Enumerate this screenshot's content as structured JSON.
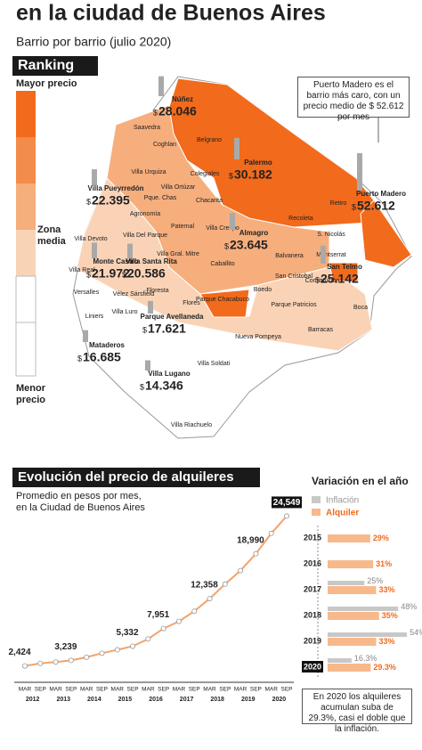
{
  "header": {
    "title": "en la ciudad de Buenos Aires",
    "subtitle": "Barrio por barrio (julio 2020)"
  },
  "ranking": {
    "title": "Ranking",
    "high": "Mayor precio",
    "mid": [
      "Zona",
      "media"
    ],
    "low": [
      "Menor",
      "precio"
    ]
  },
  "callout": "Puerto Madero es el barrio más caro, con un precio medio de $ 52.612 por mes",
  "currency": "$",
  "barrios": [
    {
      "name": "Núñez",
      "price": 28046,
      "price_label": "28.046"
    },
    {
      "name": "Saavedra"
    },
    {
      "name": "Coghlan"
    },
    {
      "name": "Belgrano"
    },
    {
      "name": "Villa Urquiza"
    },
    {
      "name": "Colegiales"
    },
    {
      "name": "Villa Ortúzar"
    },
    {
      "name": "Pque. Chas"
    },
    {
      "name": "Chacarita"
    },
    {
      "name": "Palermo",
      "price": 30182,
      "price_label": "30.182"
    },
    {
      "name": "Villa Pueyrredón",
      "price": 22395,
      "price_label": "22.395"
    },
    {
      "name": "Agronomía"
    },
    {
      "name": "Paternal"
    },
    {
      "name": "Villa Crespo"
    },
    {
      "name": "Recoleta"
    },
    {
      "name": "Retiro"
    },
    {
      "name": "Puerto Madero",
      "price": 52612,
      "price_label": "52.612"
    },
    {
      "name": "Villa Devoto"
    },
    {
      "name": "Villa Del Parque"
    },
    {
      "name": "Almagro",
      "price": 23645,
      "price_label": "23.645"
    },
    {
      "name": "S. Nicolás"
    },
    {
      "name": "Villa Gral. Mitre"
    },
    {
      "name": "Balvanera"
    },
    {
      "name": "Montserrat"
    },
    {
      "name": "Monte Castro",
      "price": 21972,
      "price_label": "21.972"
    },
    {
      "name": "Villa Santa Rita",
      "price": 20586,
      "price_label": "20.586"
    },
    {
      "name": "Caballito"
    },
    {
      "name": "San Cristobal"
    },
    {
      "name": "San Telmo",
      "price": 25142,
      "price_label": "25.142"
    },
    {
      "name": "Villa Real"
    },
    {
      "name": "Versalles"
    },
    {
      "name": "Vélez Sársfield"
    },
    {
      "name": "Floresta"
    },
    {
      "name": "Boedo"
    },
    {
      "name": "Constitución"
    },
    {
      "name": "Parque Chacabuco"
    },
    {
      "name": "Parque Patricios"
    },
    {
      "name": "Boca"
    },
    {
      "name": "Liniers"
    },
    {
      "name": "Villa Luro"
    },
    {
      "name": "Flores"
    },
    {
      "name": "Parque Avellaneda",
      "price": 17621,
      "price_label": "17.621"
    },
    {
      "name": "Nueva Pompeya"
    },
    {
      "name": "Barracas"
    },
    {
      "name": "Mataderos",
      "price": 16685,
      "price_label": "16.685"
    },
    {
      "name": "Villa Soldati"
    },
    {
      "name": "Villa Lugano",
      "price": 14346,
      "price_label": "14.346"
    },
    {
      "name": "Villa Riachuelo"
    }
  ],
  "chart_data": [
    {
      "type": "line",
      "title": "Evolución del precio de alquileres",
      "subtitle": [
        "Promedio en pesos por mes,",
        "en la Ciudad de Buenos Aires"
      ],
      "categories": [
        "MAR",
        "SEP",
        "MAR",
        "SEP",
        "MAR",
        "SEP",
        "MAR",
        "SEP",
        "MAR",
        "SEP",
        "MAR",
        "SEP",
        "MAR",
        "SEP",
        "MAR",
        "SEP",
        "MAR",
        "SEP"
      ],
      "years": [
        "2012",
        "2013",
        "2014",
        "2015",
        "2016",
        "2017",
        "2018",
        "2019",
        "2020"
      ],
      "values": [
        2424,
        2800,
        3000,
        3239,
        3700,
        4300,
        4800,
        5332,
        6400,
        7951,
        9000,
        10500,
        12358,
        14500,
        16500,
        18990,
        22000,
        24549
      ],
      "value_labels": [
        "2,424",
        null,
        null,
        "3,239",
        null,
        null,
        null,
        "5,332",
        null,
        "7,951",
        null,
        null,
        "12,358",
        null,
        null,
        "18,990",
        null,
        "24,549"
      ],
      "color": "#f4a36b",
      "ylim": [
        0,
        25000
      ]
    },
    {
      "type": "bar",
      "title": "Variación en el año",
      "categories": [
        "2015",
        "2016",
        "2017",
        "2018",
        "2019",
        "2020"
      ],
      "series": [
        {
          "name": "Inflación",
          "color": "#c8c8c8",
          "values": [
            null,
            null,
            25,
            48,
            54,
            16.3
          ],
          "value_labels": [
            null,
            null,
            "25%",
            "48%",
            "54%",
            "16.3%"
          ]
        },
        {
          "name": "Alquiler",
          "color": "#f7b98c",
          "values": [
            29,
            31,
            33,
            35,
            33,
            29.3
          ],
          "value_labels": [
            "29%",
            "31%",
            "33%",
            "35%",
            "33%",
            "29.3%"
          ]
        }
      ],
      "xlim": [
        0,
        60
      ]
    }
  ],
  "note": "En 2020 los alquileres acumulan suba de 29.3%, casi el doble que la inflación."
}
